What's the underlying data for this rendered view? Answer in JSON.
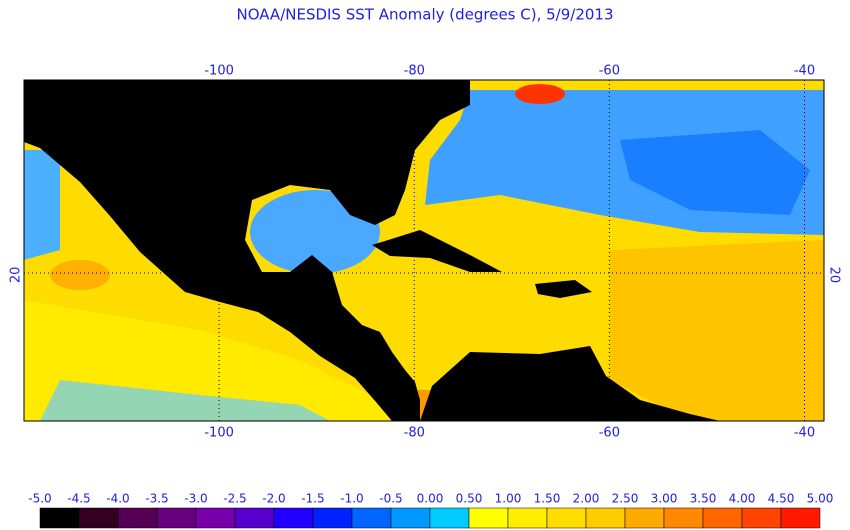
{
  "title": "NOAA/NESDIS SST Anomaly (degrees C), 5/9/2013",
  "map": {
    "lon_range": [
      -120,
      -38
    ],
    "lat_range": [
      5,
      40
    ],
    "lon_ticks": [
      -100,
      -80,
      -60,
      -40
    ],
    "lat_ticks": [
      20
    ]
  },
  "colorbar": {
    "labels": [
      "-5.0",
      "-4.5",
      "-4.0",
      "-3.5",
      "-3.0",
      "-2.5",
      "-2.0",
      "-1.5",
      "-1.0",
      "-0.5",
      "0.00",
      "0.50",
      "1.00",
      "1.50",
      "2.00",
      "2.50",
      "3.00",
      "3.50",
      "4.00",
      "4.50",
      "5.00"
    ],
    "colors": [
      "#000000",
      "#330022",
      "#550055",
      "#66007f",
      "#7700aa",
      "#5500cc",
      "#2200ff",
      "#0022ff",
      "#0066ff",
      "#0099ff",
      "#00ccff",
      "#ffff00",
      "#ffee00",
      "#ffdd00",
      "#ffcc00",
      "#ffaa00",
      "#ff8800",
      "#ff6600",
      "#ff4400",
      "#ff1a00"
    ]
  }
}
